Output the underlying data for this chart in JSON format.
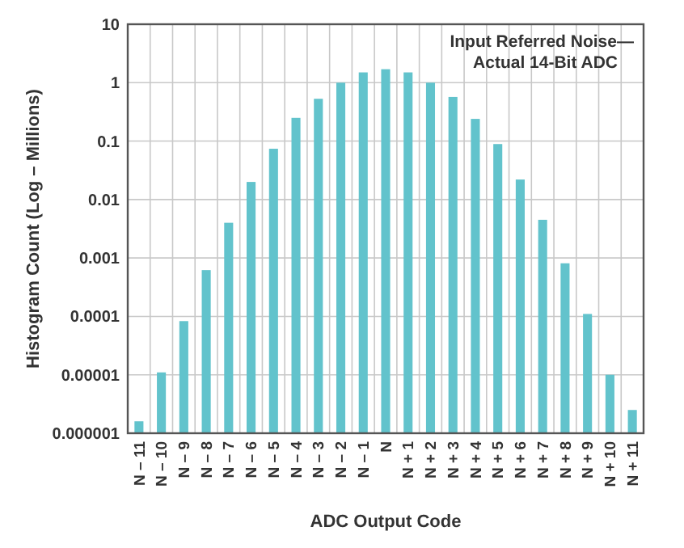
{
  "chart_data": {
    "type": "bar",
    "xlabel": "ADC Output Code",
    "ylabel": "Histogram Count (Log – Millions)",
    "categories": [
      "N – 11",
      "N – 10",
      "N – 9",
      "N – 8",
      "N – 7",
      "N – 6",
      "N – 5",
      "N – 4",
      "N – 3",
      "N – 2",
      "N – 1",
      "N",
      "N + 1",
      "N + 2",
      "N + 3",
      "N + 4",
      "N + 5",
      "N + 6",
      "N + 7",
      "N + 8",
      "N + 9",
      "N + 10",
      "N + 11"
    ],
    "values": [
      1.6e-06,
      1.1e-05,
      8.3e-05,
      0.00062,
      0.004,
      0.02,
      0.074,
      0.25,
      0.53,
      1.0,
      1.5,
      1.7,
      1.5,
      1.0,
      0.57,
      0.24,
      0.089,
      0.022,
      0.0045,
      0.00081,
      0.00011,
      1e-05,
      2.5e-06
    ],
    "color": "#62c3cc",
    "log": true,
    "ylim": [
      1e-06,
      10
    ],
    "yticks": [
      {
        "value": 1e-06,
        "label": "0.000001"
      },
      {
        "value": 1e-05,
        "label": "0.00001"
      },
      0.0001,
      0.001,
      0.01,
      0.1,
      1,
      10
    ],
    "grid": true,
    "annotations": [
      "Input Referred Noise—\nActual 14-Bit ADC"
    ]
  }
}
